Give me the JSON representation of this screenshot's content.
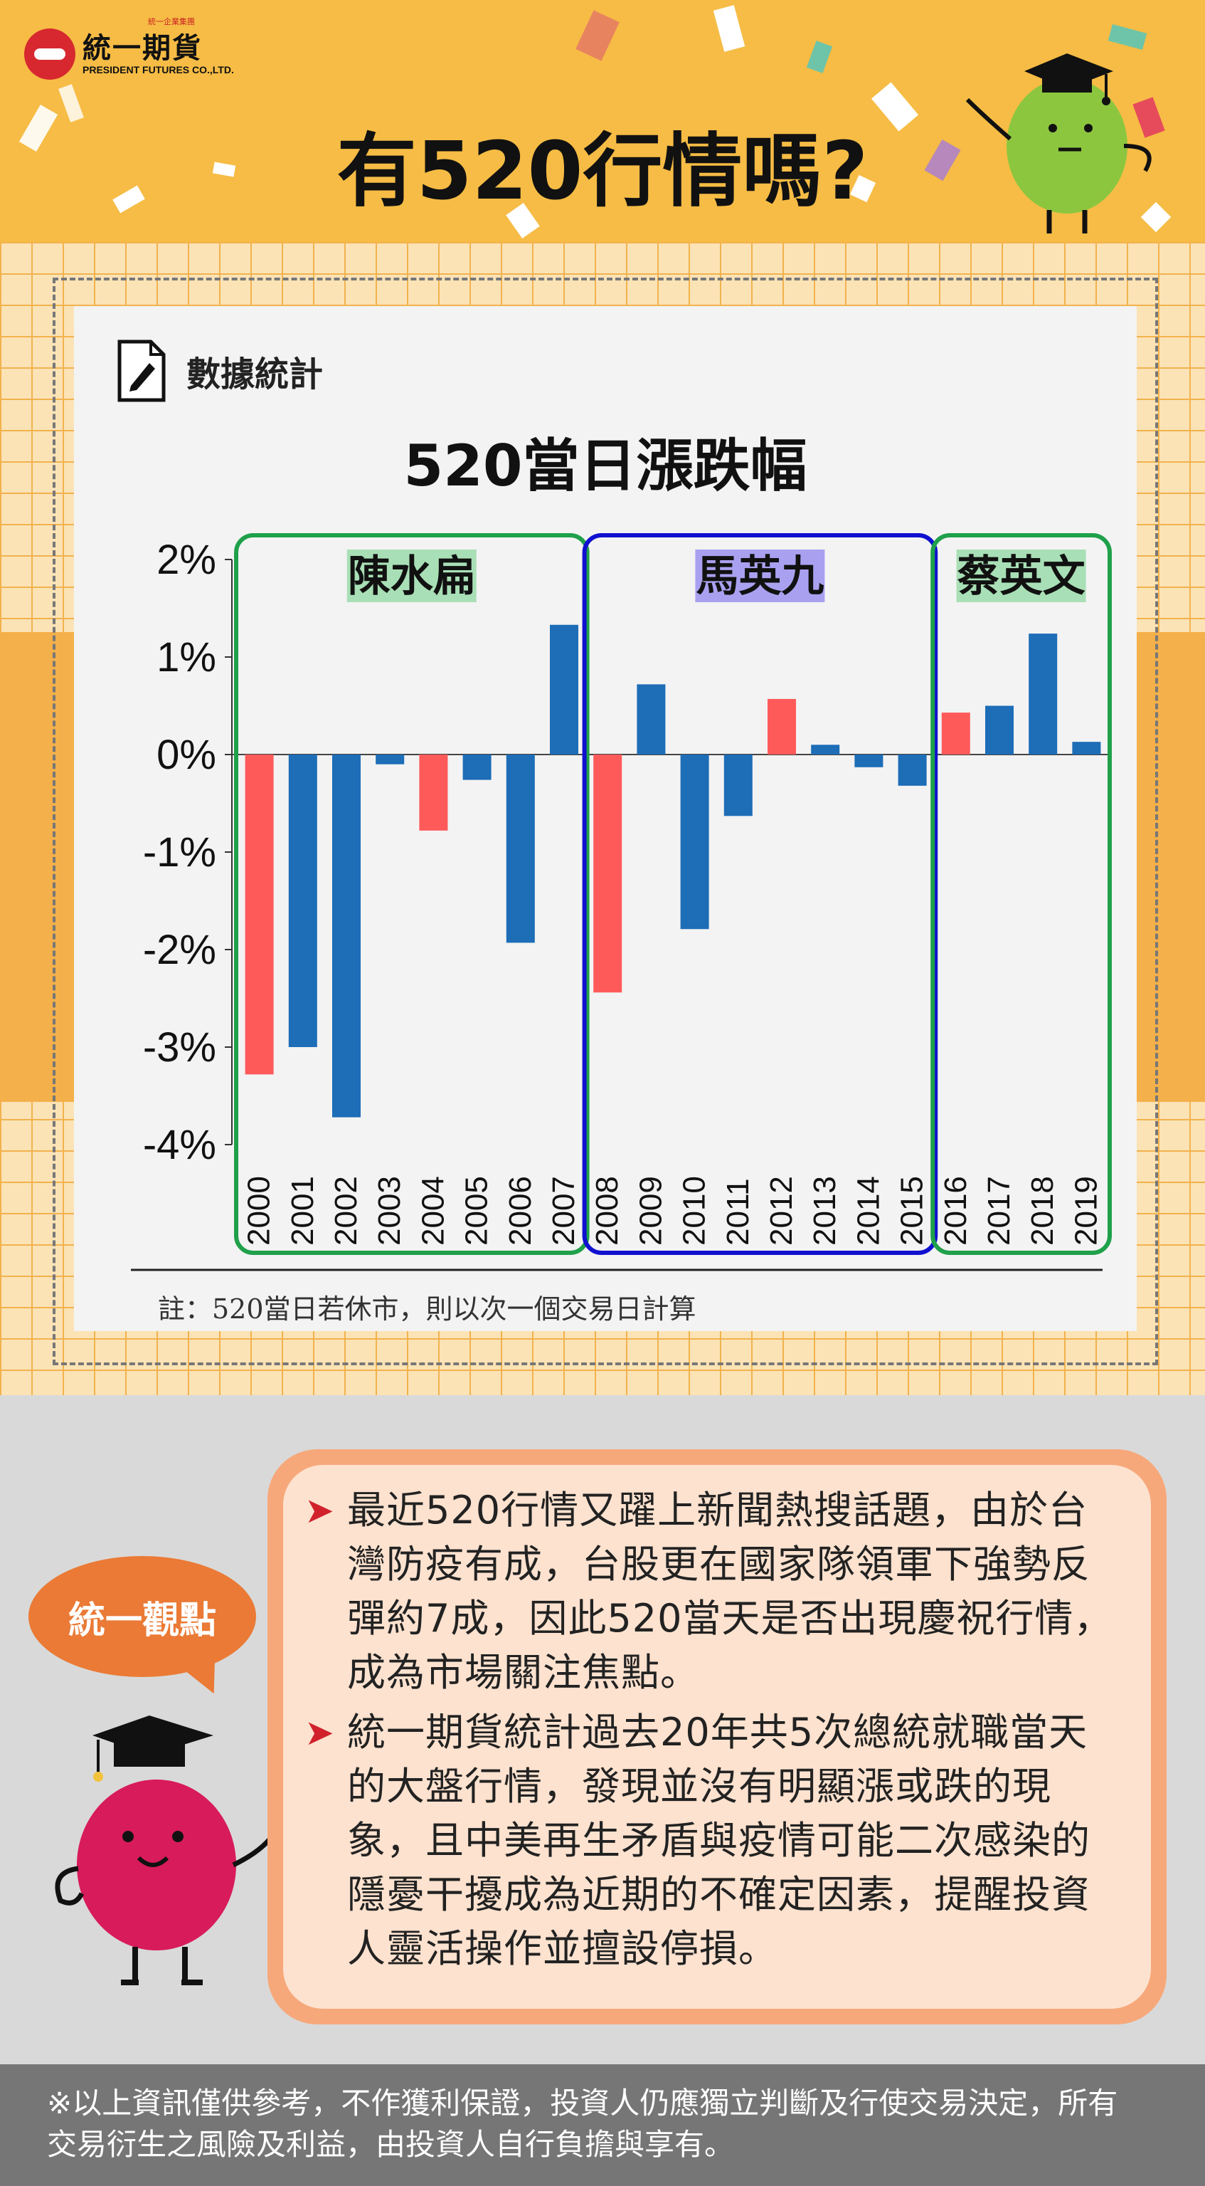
{
  "header": {
    "logo_name": "統一期貨",
    "logo_english": "PRESIDENT FUTURES CO.,LTD.",
    "logo_tag": "統一企業集團",
    "title": "有520行情嗎?"
  },
  "section": {
    "label": "數據統計",
    "icon": "document-pencil-icon"
  },
  "chart_data": {
    "type": "bar",
    "title": "520當日漲跌幅",
    "xlabel": "",
    "ylabel": "",
    "ylim": [
      -4,
      2
    ],
    "y_ticks": [
      2,
      1,
      0,
      -1,
      -2,
      -3,
      -4
    ],
    "y_tick_labels": [
      "2%",
      "1%",
      "0%",
      "-1%",
      "-2%",
      "-3%",
      "-4%"
    ],
    "categories": [
      "2000",
      "2001",
      "2002",
      "2003",
      "2004",
      "2005",
      "2006",
      "2007",
      "2008",
      "2009",
      "2010",
      "2011",
      "2012",
      "2013",
      "2014",
      "2015",
      "2016",
      "2017",
      "2018",
      "2019"
    ],
    "values": [
      -3.28,
      -3.0,
      -3.72,
      -0.1,
      -0.78,
      -0.26,
      -1.93,
      1.33,
      -2.44,
      0.72,
      -1.79,
      -0.63,
      0.57,
      0.1,
      -0.13,
      -0.32,
      0.43,
      0.5,
      1.24,
      0.13
    ],
    "bar_colors": [
      "#ff5a5a",
      "#1d6db7",
      "#1d6db7",
      "#1d6db7",
      "#ff5a5a",
      "#1d6db7",
      "#1d6db7",
      "#1d6db7",
      "#ff5a5a",
      "#1d6db7",
      "#1d6db7",
      "#1d6db7",
      "#ff5a5a",
      "#1d6db7",
      "#1d6db7",
      "#1d6db7",
      "#ff5a5a",
      "#1d6db7",
      "#1d6db7",
      "#1d6db7"
    ],
    "groups": [
      {
        "label": "陳水扁",
        "start": 0,
        "end": 7,
        "border_color": "#1fa04a",
        "label_bg": "#a9dfb6"
      },
      {
        "label": "馬英九",
        "start": 8,
        "end": 15,
        "border_color": "#1010d0",
        "label_bg": "#a9a1f0"
      },
      {
        "label": "蔡英文",
        "start": 16,
        "end": 19,
        "border_color": "#1fa04a",
        "label_bg": "#a9dfb6"
      }
    ]
  },
  "note": "註：520當日若休市，則以次一個交易日計算",
  "viewpoint": {
    "badge": "統一觀點",
    "bullets": [
      "最近520行情又躍上新聞熱搜話題，由於台灣防疫有成，台股更在國家隊領軍下強勢反彈約7成，因此520當天是否出現慶祝行情，成為市場關注焦點。",
      "統一期貨統計過去20年共5次總統就職當天的大盤行情，發現並沒有明顯漲或跌的現象，且中美再生矛盾與疫情可能二次感染的隱憂干擾成為近期的不確定因素，提醒投資人靈活操作並擅設停損。"
    ]
  },
  "footer": {
    "disclaimer": "※以上資訊僅供參考，不作獲利保證，投資人仍應獨立判斷及行使交易決定，所有交易衍生之風險及利益，由投資人自行負擔與享有。"
  }
}
